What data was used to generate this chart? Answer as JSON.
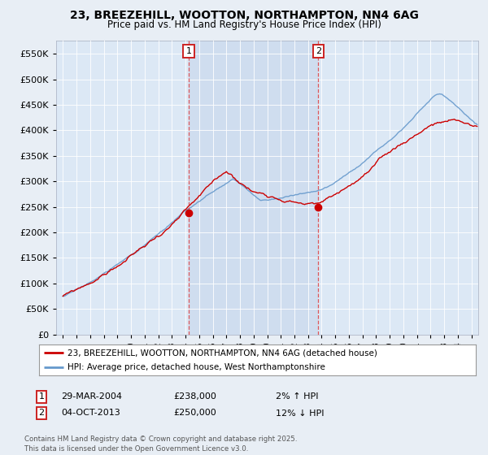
{
  "title": "23, BREEZEHILL, WOOTTON, NORTHAMPTON, NN4 6AG",
  "subtitle": "Price paid vs. HM Land Registry's House Price Index (HPI)",
  "ylim": [
    0,
    575000
  ],
  "yticks": [
    0,
    50000,
    100000,
    150000,
    200000,
    250000,
    300000,
    350000,
    400000,
    450000,
    500000,
    550000
  ],
  "background_color": "#e8eef5",
  "plot_bg": "#dce8f5",
  "shade_color": "#cddcee",
  "red_color": "#cc0000",
  "blue_color": "#6699cc",
  "grid_color": "#c8d8e8",
  "marker1_x": 2004.23,
  "marker1_y": 238000,
  "marker1_label": "1",
  "marker1_date": "29-MAR-2004",
  "marker1_price": "£238,000",
  "marker1_hpi": "2% ↑ HPI",
  "marker2_x": 2013.75,
  "marker2_y": 250000,
  "marker2_label": "2",
  "marker2_date": "04-OCT-2013",
  "marker2_price": "£250,000",
  "marker2_hpi": "12% ↓ HPI",
  "legend_line1": "23, BREEZEHILL, WOOTTON, NORTHAMPTON, NN4 6AG (detached house)",
  "legend_line2": "HPI: Average price, detached house, West Northamptonshire",
  "footnote": "Contains HM Land Registry data © Crown copyright and database right 2025.\nThis data is licensed under the Open Government Licence v3.0.",
  "xmin": 1994.5,
  "xmax": 2025.5
}
